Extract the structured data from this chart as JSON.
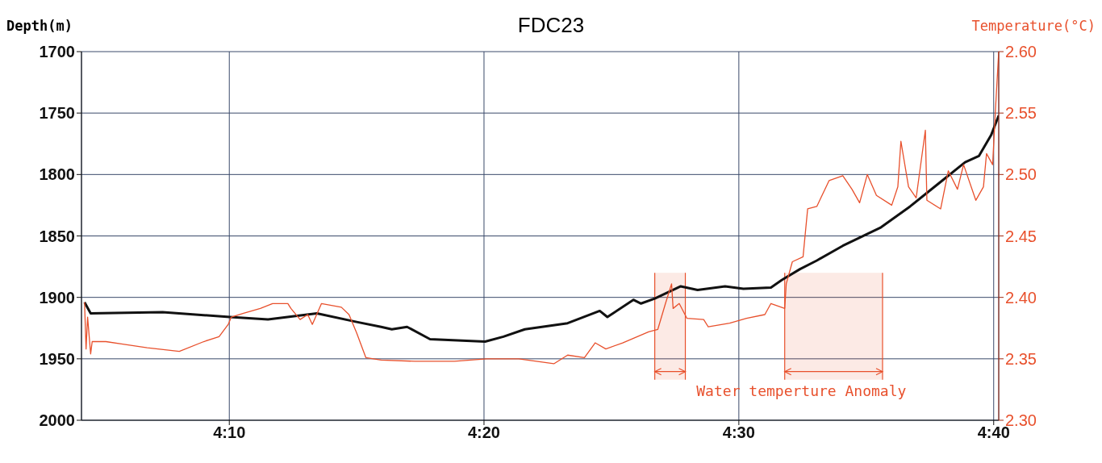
{
  "chart_data": {
    "type": "line",
    "title": "FDC23",
    "ylabel": "Depth(m)",
    "y2label": "Temperature(°C)",
    "xlim": [
      4.07,
      4.67
    ],
    "xticks": [
      {
        "value": 4.1667,
        "label": "4:10"
      },
      {
        "value": 4.3333,
        "label": "4:20"
      },
      {
        "value": 4.5,
        "label": "4:30"
      },
      {
        "value": 4.6667,
        "label": "4:40"
      }
    ],
    "ylim": [
      2000,
      1700
    ],
    "yticks": [
      1700,
      1750,
      1800,
      1850,
      1900,
      1950,
      2000
    ],
    "y2lim": [
      2.3,
      2.6
    ],
    "y2ticks": [
      {
        "value": 2.3,
        "label": "2.30"
      },
      {
        "value": 2.35,
        "label": "2.35"
      },
      {
        "value": 2.4,
        "label": "2.40"
      },
      {
        "value": 2.45,
        "label": "2.45"
      },
      {
        "value": 2.5,
        "label": "2.50"
      },
      {
        "value": 2.55,
        "label": "2.55"
      },
      {
        "value": 2.6,
        "label": "2.60"
      }
    ],
    "grid": true,
    "series": [
      {
        "color": "#111111",
        "x": [
          4.072,
          4.076,
          4.123,
          4.167,
          4.192,
          4.224,
          4.25,
          4.266,
          4.273,
          4.283,
          4.298,
          4.334,
          4.346,
          4.36,
          4.388,
          4.409,
          4.414,
          4.431,
          4.436,
          4.445,
          4.462,
          4.473,
          4.491,
          4.503,
          4.521,
          4.528,
          4.54,
          4.551,
          4.568,
          4.593,
          4.612,
          4.63,
          4.648,
          4.657,
          4.665,
          4.67
        ],
        "values": [
          1904,
          1913,
          1912,
          1916,
          1918,
          1913,
          1920,
          1924,
          1926,
          1924,
          1934,
          1936,
          1932,
          1926,
          1921,
          1911,
          1916,
          1902,
          1905,
          1901,
          1891,
          1894,
          1891,
          1893,
          1892,
          1886,
          1877,
          1870,
          1858,
          1843,
          1826,
          1808,
          1790,
          1785,
          1768,
          1752
        ]
      },
      {
        "axis": "y2",
        "color": "#e8502c",
        "x": [
          4.072,
          4.073,
          4.074,
          4.076,
          4.077,
          4.086,
          4.097,
          4.113,
          4.134,
          4.15,
          4.16,
          4.166,
          4.168,
          4.176,
          4.187,
          4.195,
          4.205,
          4.207,
          4.213,
          4.218,
          4.221,
          4.227,
          4.24,
          4.245,
          4.25,
          4.256,
          4.266,
          4.288,
          4.314,
          4.335,
          4.356,
          4.379,
          4.388,
          4.399,
          4.406,
          4.413,
          4.424,
          4.441,
          4.447,
          4.452,
          4.456,
          4.457,
          4.461,
          4.466,
          4.477,
          4.48,
          4.494,
          4.505,
          4.517,
          4.521,
          4.53,
          4.531,
          4.535,
          4.542,
          4.545,
          4.551,
          4.559,
          4.568,
          4.574,
          4.579,
          4.584,
          4.59,
          4.6,
          4.604,
          4.606,
          4.611,
          4.616,
          4.622,
          4.623,
          4.632,
          4.637,
          4.643,
          4.647,
          4.655,
          4.66,
          4.662,
          4.666,
          4.668,
          4.67
        ],
        "values": [
          2.396,
          2.358,
          2.384,
          2.354,
          2.364,
          2.364,
          2.362,
          2.359,
          2.356,
          2.364,
          2.368,
          2.378,
          2.384,
          2.387,
          2.391,
          2.395,
          2.395,
          2.391,
          2.382,
          2.386,
          2.378,
          2.395,
          2.392,
          2.386,
          2.371,
          2.351,
          2.349,
          2.348,
          2.348,
          2.35,
          2.35,
          2.346,
          2.353,
          2.351,
          2.363,
          2.358,
          2.363,
          2.372,
          2.374,
          2.395,
          2.411,
          2.391,
          2.395,
          2.383,
          2.382,
          2.376,
          2.379,
          2.383,
          2.386,
          2.395,
          2.391,
          2.411,
          2.429,
          2.433,
          2.472,
          2.474,
          2.495,
          2.499,
          2.488,
          2.477,
          2.5,
          2.483,
          2.475,
          2.49,
          2.527,
          2.49,
          2.481,
          2.536,
          2.479,
          2.472,
          2.503,
          2.488,
          2.508,
          2.479,
          2.49,
          2.517,
          2.508,
          2.556,
          2.6
        ]
      }
    ],
    "bands": [
      {
        "axis": "x",
        "from": 4.445,
        "to": 4.465,
        "color": "#e8502c"
      },
      {
        "axis": "x",
        "from": 4.53,
        "to": 4.594,
        "color": "#e8502c",
        "label": "Water temperture Anomaly"
      }
    ]
  }
}
